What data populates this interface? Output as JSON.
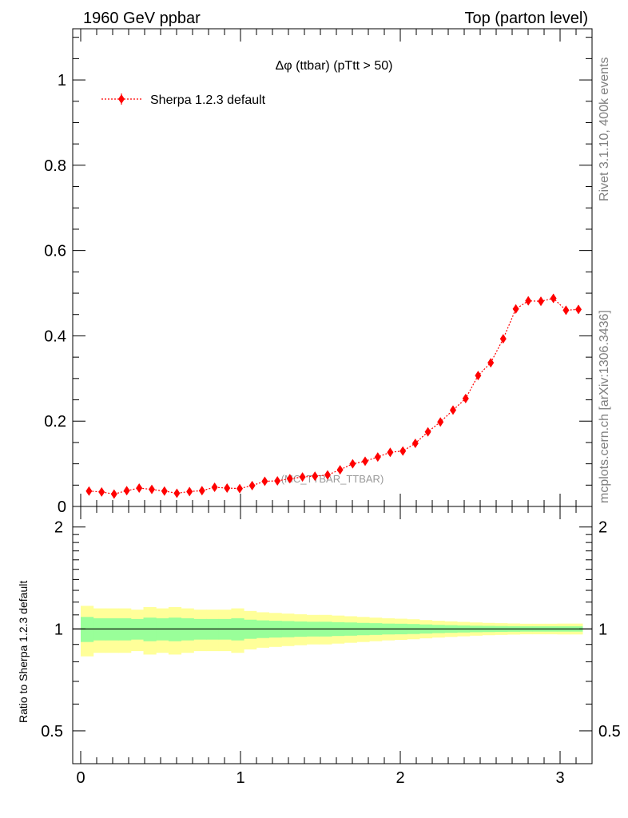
{
  "header": {
    "left_title": "1960 GeV ppbar",
    "right_title": "Top (parton level)"
  },
  "side_labels": {
    "rivet": "Rivet 3.1.10,  400k events",
    "mcplots": "mcplots.cern.ch [arXiv:1306.3436]"
  },
  "chart_data": [
    {
      "type": "scatter",
      "title": "Δφ (ttbar) (pTtt > 50)",
      "watermark": "(MC_TTBAR_TTBAR)",
      "xlim": [
        -0.05,
        3.2
      ],
      "ylim": [
        0,
        1.12
      ],
      "x_ticks": [
        0,
        1,
        2,
        3
      ],
      "y_ticks": [
        0.2,
        0.4,
        0.6,
        0.8,
        1
      ],
      "y_tick_labels": [
        "0",
        "0.2",
        "0.4",
        "0.6",
        "0.8",
        "1"
      ],
      "legend_position": "top-left",
      "series": [
        {
          "name": "Sherpa 1.2.3 default",
          "color": "#ff0000",
          "x": [
            0.052,
            0.131,
            0.209,
            0.288,
            0.366,
            0.445,
            0.524,
            0.602,
            0.681,
            0.759,
            0.838,
            0.916,
            0.995,
            1.073,
            1.152,
            1.231,
            1.309,
            1.388,
            1.466,
            1.545,
            1.623,
            1.702,
            1.78,
            1.859,
            1.937,
            2.016,
            2.094,
            2.173,
            2.251,
            2.33,
            2.409,
            2.487,
            2.566,
            2.644,
            2.723,
            2.801,
            2.88,
            2.958,
            3.037,
            3.115
          ],
          "y": [
            0.036,
            0.034,
            0.029,
            0.037,
            0.043,
            0.04,
            0.036,
            0.031,
            0.035,
            0.037,
            0.045,
            0.043,
            0.042,
            0.049,
            0.059,
            0.06,
            0.065,
            0.069,
            0.071,
            0.074,
            0.086,
            0.1,
            0.106,
            0.116,
            0.127,
            0.13,
            0.148,
            0.175,
            0.198,
            0.226,
            0.253,
            0.307,
            0.337,
            0.393,
            0.463,
            0.482,
            0.481,
            0.488,
            0.46,
            0.462
          ],
          "yerr": [
            0.006,
            0.006,
            0.006,
            0.006,
            0.006,
            0.006,
            0.006,
            0.006,
            0.006,
            0.006,
            0.006,
            0.006,
            0.006,
            0.006,
            0.006,
            0.006,
            0.006,
            0.006,
            0.006,
            0.006,
            0.007,
            0.007,
            0.007,
            0.007,
            0.007,
            0.007,
            0.007,
            0.008,
            0.008,
            0.008,
            0.008,
            0.009,
            0.009,
            0.009,
            0.01,
            0.01,
            0.01,
            0.01,
            0.01,
            0.01
          ]
        }
      ]
    },
    {
      "type": "area",
      "ylabel": "Ratio to Sherpa 1.2.3 default",
      "xlim": [
        -0.05,
        3.2
      ],
      "ylim": [
        0.4,
        2.3
      ],
      "x_ticks": [
        0,
        1,
        2,
        3
      ],
      "y_ticks": [
        0.5,
        1,
        2
      ],
      "reference_line": 1,
      "bin_edges": [
        0.0,
        0.0785,
        0.157,
        0.2355,
        0.314,
        0.3925,
        0.471,
        0.5495,
        0.628,
        0.7065,
        0.785,
        0.8635,
        0.942,
        1.0205,
        1.099,
        1.1775,
        1.256,
        1.3345,
        1.413,
        1.4915,
        1.57,
        1.6485,
        1.727,
        1.8055,
        1.884,
        1.9625,
        2.041,
        2.1195,
        2.198,
        2.2765,
        2.355,
        2.4335,
        2.512,
        2.5905,
        2.669,
        2.7475,
        2.826,
        2.9045,
        2.983,
        3.0615,
        3.14
      ],
      "bands": [
        {
          "name": "yellow",
          "color": "#ffff99",
          "half_width": [
            0.17,
            0.15,
            0.15,
            0.15,
            0.14,
            0.16,
            0.15,
            0.16,
            0.15,
            0.14,
            0.14,
            0.14,
            0.15,
            0.13,
            0.12,
            0.115,
            0.11,
            0.105,
            0.1,
            0.1,
            0.095,
            0.09,
            0.085,
            0.08,
            0.075,
            0.072,
            0.068,
            0.062,
            0.057,
            0.053,
            0.049,
            0.045,
            0.042,
            0.04,
            0.038,
            0.036,
            0.036,
            0.036,
            0.037,
            0.037
          ]
        },
        {
          "name": "green",
          "color": "#99ff99",
          "half_width": [
            0.085,
            0.075,
            0.075,
            0.075,
            0.07,
            0.08,
            0.075,
            0.08,
            0.075,
            0.07,
            0.07,
            0.07,
            0.075,
            0.065,
            0.06,
            0.057,
            0.055,
            0.052,
            0.05,
            0.05,
            0.047,
            0.045,
            0.042,
            0.04,
            0.037,
            0.036,
            0.034,
            0.031,
            0.028,
            0.026,
            0.024,
            0.022,
            0.021,
            0.02,
            0.019,
            0.018,
            0.018,
            0.018,
            0.018,
            0.018
          ]
        }
      ]
    }
  ]
}
